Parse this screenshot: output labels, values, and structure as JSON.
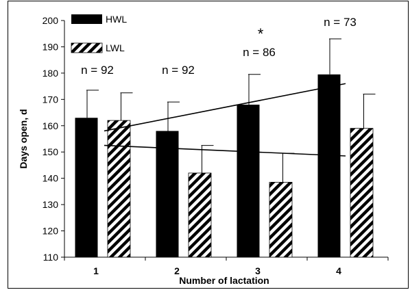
{
  "chart_data": {
    "type": "bar",
    "title": "",
    "xlabel": "Number of lactation",
    "ylabel": "Days open, d",
    "ylim": [
      110,
      200
    ],
    "yticks": [
      110,
      120,
      130,
      140,
      150,
      160,
      170,
      180,
      190,
      200
    ],
    "categories": [
      "1",
      "2",
      "3",
      "4"
    ],
    "series": [
      {
        "name": "HWL",
        "pattern": "solid",
        "color": "#000000",
        "values": [
          163,
          158,
          168,
          179.5
        ],
        "error_upper": [
          173.5,
          169,
          179.5,
          193
        ]
      },
      {
        "name": "LWL",
        "pattern": "diagonal-hatch",
        "color": "#000000",
        "values": [
          162,
          142,
          138.5,
          159
        ],
        "error_upper": [
          172.5,
          152.5,
          149.5,
          172
        ]
      }
    ],
    "trendlines": [
      {
        "series": "HWL",
        "x": [
          "1",
          "4"
        ],
        "y": [
          158,
          176
        ]
      },
      {
        "series": "LWL",
        "x": [
          "1",
          "4"
        ],
        "y": [
          152.5,
          148.5
        ]
      }
    ],
    "annotations": [
      {
        "category": "1",
        "text": "n = 92"
      },
      {
        "category": "2",
        "text": "n = 92"
      },
      {
        "category": "3",
        "text": "n = 86",
        "marker": "*"
      },
      {
        "category": "4",
        "text": "n = 73"
      }
    ],
    "legend": "top-left",
    "grid": false
  }
}
